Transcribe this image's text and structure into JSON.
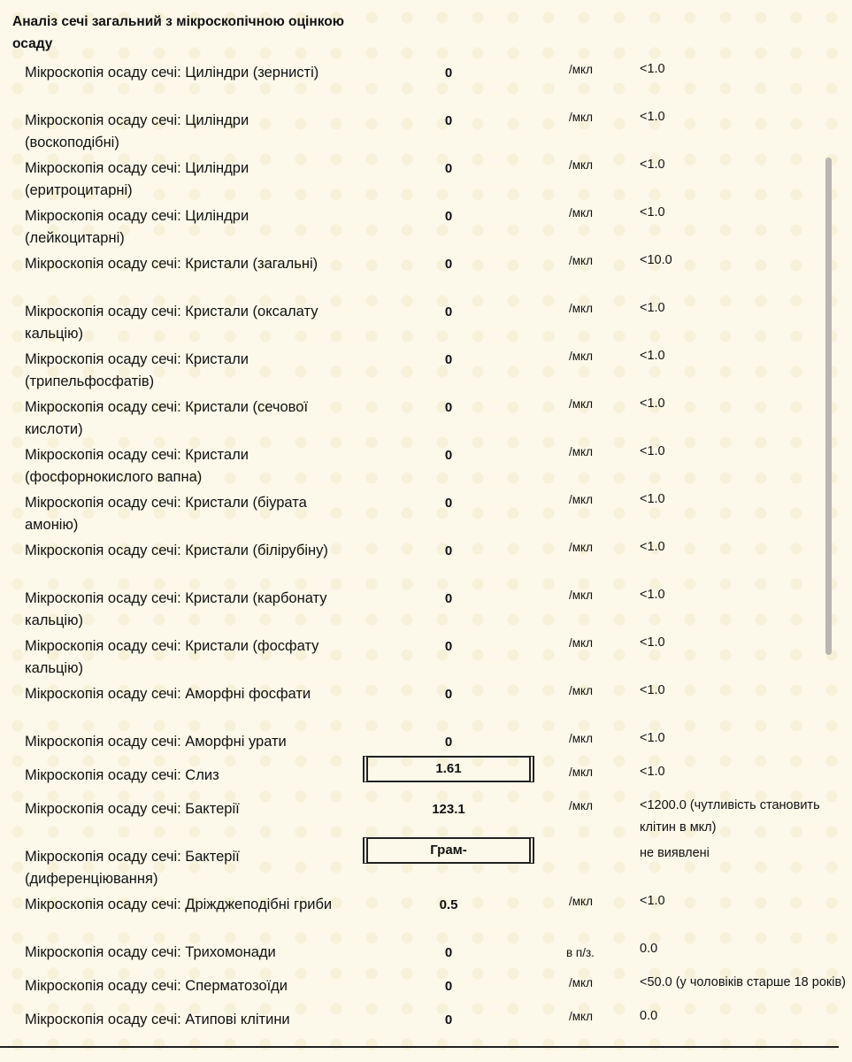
{
  "title": "Аналіз сечі загальний з мікроскопічною оцінкою осаду",
  "rows": [
    {
      "name": "Мікроскопія осаду сечі: Циліндри (зернисті)",
      "value": "0",
      "unit": "/мкл",
      "ref": "<1.0"
    },
    {
      "name": "Мікроскопія осаду сечі: Циліндри (воскоподібні)",
      "value": "0",
      "unit": "/мкл",
      "ref": "<1.0"
    },
    {
      "name": "Мікроскопія осаду сечі: Циліндри (еритроцитарні)",
      "value": "0",
      "unit": "/мкл",
      "ref": "<1.0"
    },
    {
      "name": "Мікроскопія осаду сечі: Циліндри (лейкоцитарні)",
      "value": "0",
      "unit": "/мкл",
      "ref": "<1.0"
    },
    {
      "name": "Мікроскопія осаду сечі: Кристали (загальні)",
      "value": "0",
      "unit": "/мкл",
      "ref": "<10.0"
    },
    {
      "name": "Мікроскопія осаду сечі: Кристали (оксалату кальцію)",
      "value": "0",
      "unit": "/мкл",
      "ref": "<1.0"
    },
    {
      "name": "Мікроскопія осаду сечі: Кристали (трипельфосфатів)",
      "value": "0",
      "unit": "/мкл",
      "ref": "<1.0"
    },
    {
      "name": "Мікроскопія осаду сечі: Кристали (сечової кислоти)",
      "value": "0",
      "unit": "/мкл",
      "ref": "<1.0"
    },
    {
      "name": "Мікроскопія осаду сечі: Кристали (фосфорнокислого вапна)",
      "value": "0",
      "unit": "/мкл",
      "ref": "<1.0"
    },
    {
      "name": "Мікроскопія осаду сечі: Кристали (біурата амонію)",
      "value": "0",
      "unit": "/мкл",
      "ref": "<1.0"
    },
    {
      "name": "Мікроскопія осаду сечі: Кристали (білірубіну)",
      "value": "0",
      "unit": "/мкл",
      "ref": "<1.0"
    },
    {
      "name": "Мікроскопія осаду сечі: Кристали (карбонату кальцію)",
      "value": "0",
      "unit": "/мкл",
      "ref": "<1.0"
    },
    {
      "name": "Мікроскопія осаду сечі: Кристали (фосфату кальцію)",
      "value": "0",
      "unit": "/мкл",
      "ref": "<1.0"
    },
    {
      "name": "Мікроскопія осаду сечі: Аморфні фосфати",
      "value": "0",
      "unit": "/мкл",
      "ref": "<1.0"
    },
    {
      "name": "Мікроскопія осаду сечі: Аморфні урати",
      "value": "0",
      "unit": "/мкл",
      "ref": "<1.0"
    },
    {
      "name": "Мікроскопія осаду сечі: Слиз",
      "value": "1.61",
      "unit": "/мкл",
      "ref": "<1.0",
      "flagged": true
    },
    {
      "name": "Мікроскопія осаду сечі: Бактерії",
      "value": "123.1",
      "unit": "/мкл",
      "ref": "<1200.0 (чутливість становить клітин в мкл)"
    },
    {
      "name": "Мікроскопія осаду сечі: Бактерії (диференціювання)",
      "value": "Грам-",
      "unit": "",
      "ref": "не виявлені",
      "flagged": true
    },
    {
      "name": "Мікроскопія осаду сечі: Дріжджеподібні гриби",
      "value": "0.5",
      "unit": "/мкл",
      "ref": "<1.0"
    },
    {
      "name": "Мікроскопія осаду сечі: Трихомонади",
      "value": "0",
      "unit": "в п/з.",
      "ref": "0.0"
    },
    {
      "name": "Мікроскопія осаду сечі: Сперматозоїди",
      "value": "0",
      "unit": "/мкл",
      "ref": "<50.0 (у чоловіків старше 18 років)"
    },
    {
      "name": "Мікроскопія осаду сечі: Атипові клітини",
      "value": "0",
      "unit": "/мкл",
      "ref": "0.0"
    }
  ]
}
